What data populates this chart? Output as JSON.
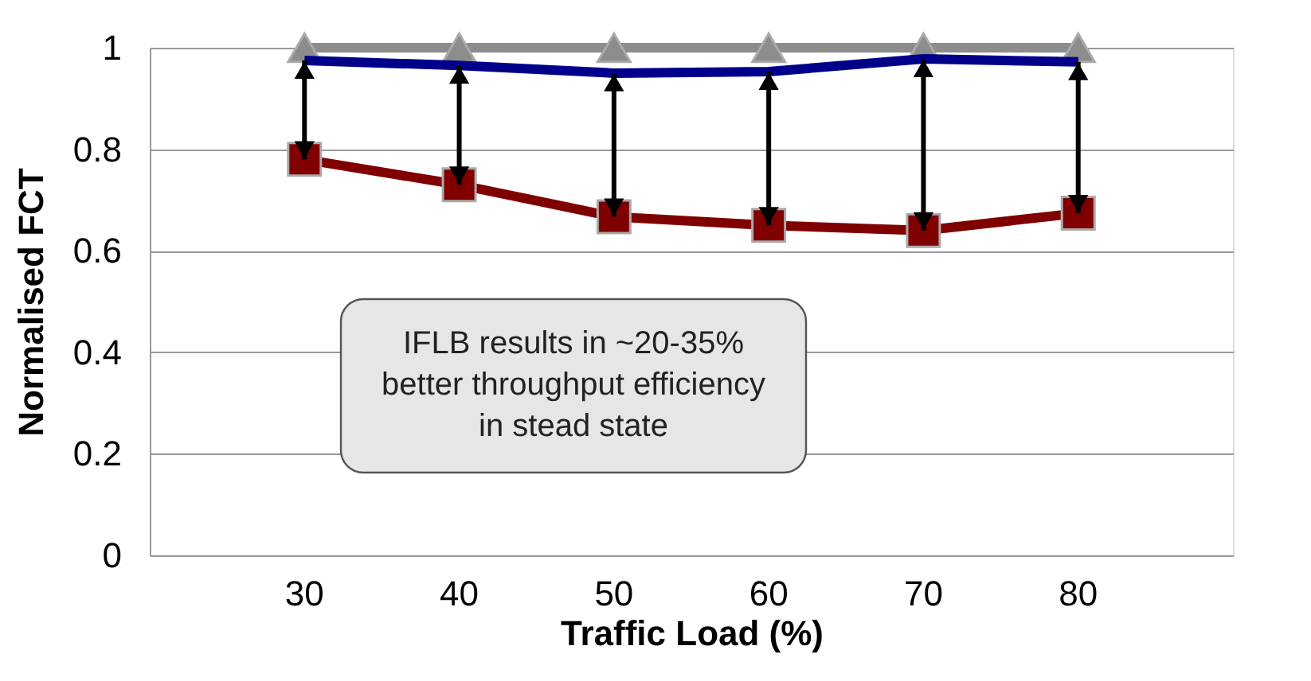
{
  "chart_data": {
    "type": "line",
    "xlabel": "Traffic Load (%)",
    "ylabel": "Normalised FCT",
    "categories": [
      "30",
      "40",
      "50",
      "60",
      "70",
      "80"
    ],
    "series": [
      {
        "color": "#8c8c8c",
        "marker": "triangle",
        "values": [
          1,
          1,
          1,
          1,
          1,
          1
        ]
      },
      {
        "color": "#00008b",
        "marker": "none",
        "values": [
          0.975,
          0.965,
          0.95,
          0.953,
          0.978,
          0.972
        ]
      },
      {
        "color": "#800000",
        "marker": "square",
        "values": [
          0.78,
          0.73,
          0.667,
          0.65,
          0.64,
          0.674
        ]
      }
    ],
    "ylim": [
      0,
      1
    ],
    "yticks": [
      0,
      0.2,
      0.4,
      0.6,
      0.8,
      1
    ],
    "grid": "y",
    "annotations": [
      "IFLB results in ~20-35%\nbetter throughput efficiency\nin stead state"
    ]
  }
}
